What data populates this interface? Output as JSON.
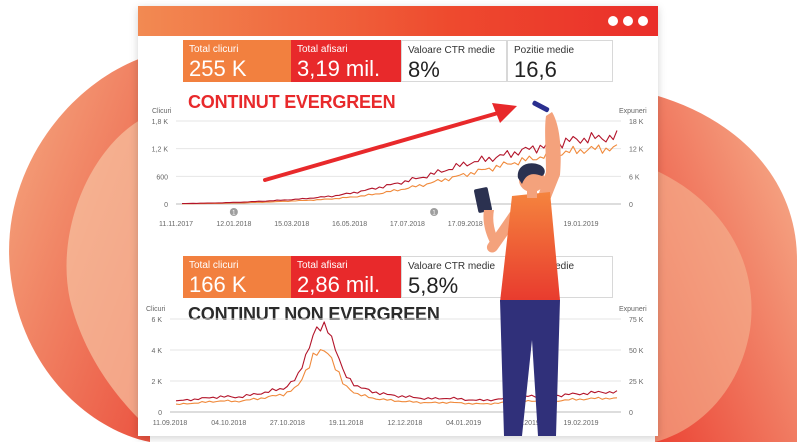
{
  "window": {
    "menu_icon": "three-dots-icon"
  },
  "panels": [
    {
      "heading": "CONTINUT EVERGREEN",
      "metrics": [
        {
          "label": "Total clicuri",
          "value": "255 K",
          "style": "orange"
        },
        {
          "label": "Total afisari",
          "value": "3,19 mil.",
          "style": "red"
        },
        {
          "label": "Valoare CTR medie",
          "value": "8%",
          "style": "white"
        },
        {
          "label": "Pozitie medie",
          "value": "16,6",
          "style": "white"
        }
      ]
    },
    {
      "heading": "CONTINUT NON EVERGREEN",
      "metrics": [
        {
          "label": "Total clicuri",
          "value": "166 K",
          "style": "orange"
        },
        {
          "label": "Total afisari",
          "value": "2,86 mil.",
          "style": "red"
        },
        {
          "label": "Valoare CTR medie",
          "value": "5,8%",
          "style": "white"
        },
        {
          "label": "Pozitie medie",
          "value": "",
          "style": "white"
        }
      ]
    }
  ],
  "chart_data": [
    {
      "type": "line",
      "left_axis_title": "Clicuri",
      "right_axis_title": "Expuneri",
      "left_ticks": [
        "0",
        "600",
        "1,2 K",
        "1,8 K"
      ],
      "right_ticks": [
        "0",
        "6 K",
        "12 K",
        "18 K"
      ],
      "left_range": [
        0,
        1800
      ],
      "right_range": [
        0,
        18000
      ],
      "x_ticks": [
        "11.11.2017",
        "12.01.2018",
        "15.03.2018",
        "16.05.2018",
        "17.07.2018",
        "17.09.2018",
        "19.11.2018",
        "19.01.2019"
      ],
      "annotation_markers": [
        "1",
        "1"
      ],
      "series": [
        {
          "role": "clicks",
          "color": "#b3142a",
          "axis": "left",
          "values": [
            10,
            15,
            20,
            30,
            40,
            55,
            70,
            90,
            110,
            140,
            170,
            220,
            280,
            350,
            420,
            500,
            580,
            680,
            780,
            880,
            950,
            1020,
            1100,
            1180,
            1250,
            1320,
            1380,
            1420,
            1440,
            1450
          ]
        },
        {
          "role": "impressions",
          "color": "#f08a3c",
          "axis": "right",
          "values": [
            50,
            80,
            120,
            180,
            250,
            350,
            450,
            600,
            750,
            900,
            1100,
            1400,
            1750,
            2200,
            2800,
            3400,
            4100,
            4900,
            5700,
            6500,
            7300,
            8100,
            8900,
            9600,
            10300,
            10900,
            11400,
            11800,
            12000,
            12100
          ]
        }
      ]
    },
    {
      "type": "line",
      "left_axis_title": "Clicuri",
      "right_axis_title": "Expuneri",
      "left_ticks": [
        "0",
        "2 K",
        "4 K",
        "6 K"
      ],
      "right_ticks": [
        "0",
        "25 K",
        "50 K",
        "75 K"
      ],
      "left_range": [
        0,
        6000
      ],
      "right_range": [
        0,
        75000
      ],
      "x_ticks": [
        "11.09.2018",
        "04.10.2018",
        "27.10.2018",
        "19.11.2018",
        "12.12.2018",
        "04.01.2019",
        "27.01.2019",
        "19.02.2019"
      ],
      "series": [
        {
          "role": "clicks",
          "color": "#b3142a",
          "axis": "left",
          "values": [
            700,
            800,
            900,
            1000,
            950,
            1100,
            1300,
            1500,
            2200,
            5000,
            5600,
            2500,
            1600,
            1300,
            1100,
            1000,
            900,
            850,
            900,
            800,
            750,
            800,
            900,
            1000,
            1100,
            1050,
            1150,
            1200,
            1300,
            1250
          ]
        },
        {
          "role": "impressions",
          "color": "#f08a3c",
          "axis": "right",
          "values": [
            6000,
            7000,
            8000,
            9000,
            8500,
            10000,
            12000,
            14000,
            20000,
            45000,
            50000,
            22000,
            14000,
            11000,
            9500,
            8500,
            7800,
            7400,
            7800,
            7000,
            6500,
            7000,
            7800,
            8500,
            9500,
            9000,
            10000,
            10500,
            11200,
            10800
          ]
        }
      ]
    }
  ]
}
